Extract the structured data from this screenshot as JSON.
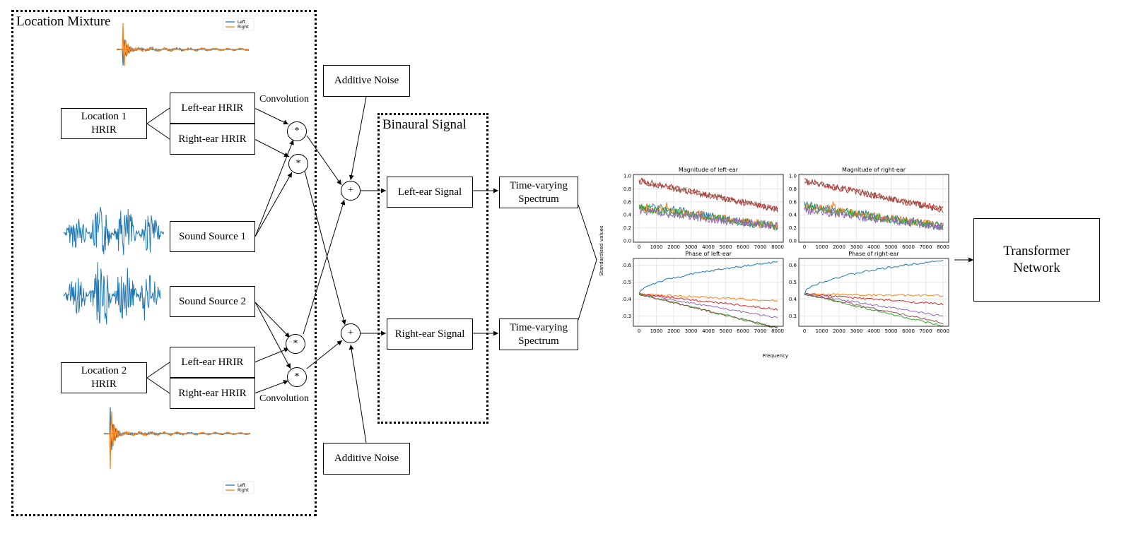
{
  "mixture": {
    "title": "Location Mixture",
    "location1": "Location 1\nHRIR",
    "location2": "Location 2\nHRIR",
    "left_hrir_1": "Left-ear HRIR",
    "right_hrir_1": "Right-ear HRIR",
    "left_hrir_2": "Left-ear HRIR",
    "right_hrir_2": "Right-ear HRIR",
    "source1": "Sound Source 1",
    "source2": "Sound Source 2",
    "convolution_top": "Convolution",
    "convolution_bottom": "Convolution",
    "conv_symbol": "*",
    "legend": {
      "left": "Left",
      "right": "Right"
    }
  },
  "noise": {
    "top": "Additive Noise",
    "bottom": "Additive Noise",
    "add_symbol": "+"
  },
  "binaural": {
    "title": "Binaural Signal",
    "left": "Left-ear Signal",
    "right": "Right-ear Signal"
  },
  "spectrum": {
    "top": "Time-varying\nSpectrum",
    "bottom": "Time-varying\nSpectrum"
  },
  "transformer": {
    "label": "Transformer\nNetwork"
  },
  "colors": {
    "left": "#1f77b4",
    "right": "#ff7f0e"
  },
  "plots": {
    "ylabel": "Standardised values",
    "xlabel": "Frequency",
    "panels": [
      {
        "title": "Magnitude of left-ear",
        "yticks": [
          "0.0",
          "0.2",
          "0.4",
          "0.6",
          "0.8",
          "1.0"
        ],
        "xticks": [
          "0",
          "1000",
          "2000",
          "3000",
          "4000",
          "5000",
          "6000",
          "7000",
          "8000"
        ]
      },
      {
        "title": "Magnitude of right-ear",
        "yticks": [
          "0.0",
          "0.2",
          "0.4",
          "0.6",
          "0.8",
          "1.0"
        ],
        "xticks": [
          "0",
          "1000",
          "2000",
          "3000",
          "4000",
          "5000",
          "6000",
          "7000",
          "8000"
        ]
      },
      {
        "title": "Phase of left-ear",
        "yticks": [
          "0.3",
          "0.4",
          "0.5",
          "0.6"
        ],
        "xticks": [
          "0",
          "1000",
          "2000",
          "3000",
          "4000",
          "5000",
          "6000",
          "7000",
          "8000"
        ]
      },
      {
        "title": "Phase of right-ear",
        "yticks": [
          "0.3",
          "0.4",
          "0.5",
          "0.6"
        ],
        "xticks": [
          "0",
          "1000",
          "2000",
          "3000",
          "4000",
          "5000",
          "6000",
          "7000",
          "8000"
        ]
      }
    ],
    "series_colors": [
      "#1f77b4",
      "#ff7f0e",
      "#2ca02c",
      "#d62728",
      "#9467bd",
      "#8c564b"
    ]
  }
}
